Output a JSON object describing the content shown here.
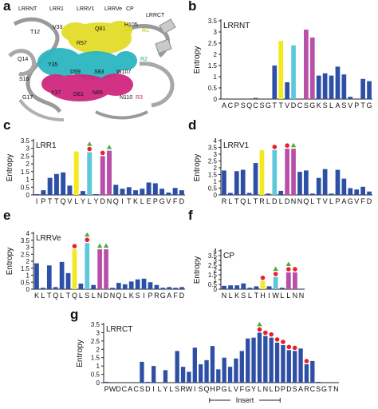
{
  "colors": {
    "bar": "#2d4fa6",
    "yellow": "#f2ea1c",
    "cyan": "#5cc8dc",
    "magenta": "#b84fa8",
    "red_dot": "#e8202a",
    "green_triangle": "#4faa3c",
    "axis": "#222222"
  },
  "panel_a": {
    "letter": "a",
    "labels": [
      "LRRNT",
      "LRR1",
      "LRRV1",
      "LRRVe",
      "CP",
      "LRRCT",
      "T12",
      "V33",
      "R57",
      "Q81",
      "H105",
      "R1",
      "Q14",
      "Y35",
      "D59",
      "S83",
      "W107",
      "R2",
      "S16",
      "D61",
      "N85",
      "G17",
      "Y37",
      "N110",
      "R3"
    ]
  },
  "chart_data": [
    {
      "panel": "b",
      "type": "bar",
      "title": "LRRNT",
      "ylabel": "Entropy",
      "ylim": [
        0,
        3.5
      ],
      "yticks": [
        0,
        0.5,
        1,
        1.5,
        2,
        2.5,
        3,
        3.5
      ],
      "categories": [
        "A",
        "C",
        "P",
        "S",
        "Q",
        "C",
        "S",
        "G",
        "T",
        "T",
        "V",
        "D",
        "C",
        "S",
        "G",
        "K",
        "S",
        "L",
        "A",
        "S",
        "V",
        "P",
        "T",
        "G"
      ],
      "values": [
        0,
        0,
        0,
        0,
        0,
        0.05,
        0,
        0,
        1.5,
        2.6,
        0.75,
        2.4,
        0,
        3.1,
        2.75,
        1.05,
        1.15,
        1.05,
        1.45,
        1.1,
        0.1,
        0,
        0.9,
        0.8
      ],
      "colors": [
        "b",
        "b",
        "b",
        "b",
        "b",
        "b",
        "b",
        "b",
        "b",
        "y",
        "b",
        "c",
        "b",
        "m",
        "m",
        "b",
        "b",
        "b",
        "b",
        "b",
        "b",
        "b",
        "b",
        "b"
      ],
      "markers": []
    },
    {
      "panel": "c",
      "type": "bar",
      "title": "LRR1",
      "ylabel": "Entropy",
      "ylim": [
        0,
        3.5
      ],
      "yticks": [
        0,
        0.5,
        1,
        1.5,
        2,
        2.5,
        3,
        3.5
      ],
      "categories": [
        "I",
        "P",
        "T",
        "T",
        "Q",
        "V",
        "L",
        "Y",
        "L",
        "Y",
        "D",
        "N",
        "Q",
        "I",
        "T",
        "K",
        "L",
        "E",
        "P",
        "G",
        "V",
        "F",
        "D"
      ],
      "values": [
        0.05,
        0.3,
        1.1,
        1.35,
        1.45,
        0.6,
        2.8,
        0.25,
        2.75,
        0.05,
        2.5,
        2.85,
        0.65,
        0.4,
        0.5,
        0.3,
        0.4,
        0.8,
        0.75,
        0.4,
        0.15,
        0.45,
        0.3
      ],
      "colors": [
        "b",
        "b",
        "b",
        "b",
        "b",
        "b",
        "y",
        "b",
        "c",
        "b",
        "m",
        "m",
        "b",
        "b",
        "b",
        "b",
        "b",
        "b",
        "b",
        "b",
        "b",
        "b",
        "b"
      ],
      "markers": [
        {
          "i": 8,
          "dot": true,
          "tri": true
        },
        {
          "i": 10,
          "dot": true,
          "tri": false
        },
        {
          "i": 11,
          "dot": false,
          "tri": true
        }
      ]
    },
    {
      "panel": "d",
      "type": "bar",
      "title": "LRRV1",
      "ylabel": "Entropy",
      "ylim": [
        0,
        4
      ],
      "yticks": [
        0,
        0.5,
        1,
        1.5,
        2,
        2.5,
        3,
        3.5,
        4
      ],
      "categories": [
        "R",
        "L",
        "T",
        "Q",
        "L",
        "T",
        "R",
        "L",
        "D",
        "L",
        "D",
        "N",
        "N",
        "Q",
        "L",
        "T",
        "V",
        "L",
        "P",
        "A",
        "G",
        "V",
        "F",
        "D"
      ],
      "values": [
        1.8,
        0.15,
        1.75,
        1.85,
        0.15,
        2.35,
        3.3,
        0.1,
        3.3,
        0.3,
        3.4,
        3.4,
        1.7,
        1.8,
        0.1,
        1.25,
        1.9,
        0.1,
        1.85,
        1.2,
        0.5,
        0.4,
        0.6,
        0.25
      ],
      "colors": [
        "b",
        "b",
        "b",
        "b",
        "b",
        "b",
        "y",
        "b",
        "c",
        "b",
        "m",
        "m",
        "b",
        "b",
        "b",
        "b",
        "b",
        "b",
        "b",
        "b",
        "b",
        "b",
        "b",
        "b"
      ],
      "markers": [
        {
          "i": 8,
          "dot": true,
          "tri": false
        },
        {
          "i": 10,
          "dot": true,
          "tri": false
        },
        {
          "i": 11,
          "dot": false,
          "tri": true
        }
      ]
    },
    {
      "panel": "e",
      "type": "bar",
      "title": "LRRVe",
      "ylabel": "Entropy",
      "ylim": [
        0,
        4
      ],
      "yticks": [
        0,
        0.5,
        1,
        1.5,
        2,
        2.5,
        3,
        3.5,
        4
      ],
      "categories": [
        "K",
        "L",
        "T",
        "Q",
        "L",
        "T",
        "Q",
        "L",
        "S",
        "L",
        "N",
        "D",
        "N",
        "Q",
        "L",
        "K",
        "S",
        "I",
        "P",
        "R",
        "G",
        "A",
        "F",
        "D"
      ],
      "values": [
        1.85,
        0.1,
        1.7,
        0.15,
        1.95,
        1.15,
        2.85,
        0.4,
        3.3,
        0.3,
        2.85,
        2.85,
        0.1,
        0.45,
        0.35,
        0.55,
        0.7,
        0.75,
        0.5,
        0.3,
        0.1,
        0.15,
        0.1,
        0.15
      ],
      "colors": [
        "b",
        "b",
        "b",
        "b",
        "b",
        "b",
        "y",
        "b",
        "c",
        "b",
        "m",
        "m",
        "b",
        "b",
        "b",
        "b",
        "b",
        "b",
        "b",
        "b",
        "b",
        "b",
        "b",
        "b"
      ],
      "markers": [
        {
          "i": 6,
          "dot": true,
          "tri": false
        },
        {
          "i": 8,
          "dot": true,
          "tri": true
        },
        {
          "i": 10,
          "dot": false,
          "tri": true
        },
        {
          "i": 11,
          "dot": false,
          "tri": true
        }
      ]
    },
    {
      "panel": "f",
      "type": "bar",
      "title": "CP",
      "ylabel": "Entropy",
      "ylim": [
        0,
        4
      ],
      "yticks": [
        0,
        0.5,
        1,
        1.5,
        2,
        2.5,
        3,
        3.5,
        4
      ],
      "categories": [
        "N",
        "L",
        "K",
        "S",
        "L",
        "T",
        "H",
        "I",
        "W",
        "L",
        "L",
        "N",
        "N"
      ],
      "values": [
        0.35,
        0.4,
        0.4,
        0.6,
        0.15,
        0.3,
        0.85,
        0.3,
        1.25,
        0.15,
        1.75,
        1.75,
        0
      ],
      "colors": [
        "b",
        "b",
        "b",
        "b",
        "b",
        "b",
        "y",
        "b",
        "c",
        "b",
        "m",
        "m",
        "b"
      ],
      "markers": [
        {
          "i": 6,
          "dot": true,
          "tri": false
        },
        {
          "i": 8,
          "dot": true,
          "tri": true
        },
        {
          "i": 10,
          "dot": true,
          "tri": true
        },
        {
          "i": 11,
          "dot": true,
          "tri": false
        }
      ]
    },
    {
      "panel": "g",
      "type": "bar",
      "title": "LRRCT",
      "ylabel": "Entropy",
      "ylim": [
        0,
        3.5
      ],
      "yticks": [
        0,
        0.5,
        1,
        1.5,
        2,
        2.5,
        3,
        3.5
      ],
      "xnote": "Insert",
      "categories": [
        "P",
        "W",
        "D",
        "C",
        "A",
        "C",
        "S",
        "D",
        "I",
        "L",
        "Y",
        "L",
        "S",
        "R",
        "W",
        "I",
        "S",
        "Q",
        "H",
        "P",
        "G",
        "L",
        "V",
        "F",
        "G",
        "Y",
        "L",
        "N",
        "L",
        "D",
        "P",
        "D",
        "S",
        "A",
        "R",
        "C",
        "S",
        "G",
        "T",
        "N"
      ],
      "values": [
        0.05,
        0,
        0,
        0,
        0,
        0,
        1.25,
        0.05,
        1.0,
        0,
        0.75,
        0,
        1.9,
        0.95,
        0.65,
        2.1,
        1.1,
        1.35,
        2.2,
        0.8,
        1.5,
        0.95,
        1.45,
        1.9,
        2.65,
        2.7,
        3.0,
        2.8,
        2.7,
        2.4,
        2.25,
        1.95,
        1.9,
        2.05,
        1.1,
        1.3,
        0.05,
        0,
        0,
        0
      ],
      "colors": [
        "b",
        "b",
        "b",
        "b",
        "b",
        "b",
        "b",
        "b",
        "b",
        "b",
        "b",
        "b",
        "b",
        "b",
        "b",
        "b",
        "b",
        "b",
        "b",
        "b",
        "b",
        "b",
        "b",
        "b",
        "b",
        "b",
        "b",
        "b",
        "b",
        "b",
        "b",
        "b",
        "b",
        "b",
        "b",
        "b",
        "b",
        "b",
        "b",
        "b"
      ],
      "markers": [
        {
          "i": 26,
          "dot": true,
          "tri": true
        },
        {
          "i": 27,
          "dot": true,
          "tri": false
        },
        {
          "i": 28,
          "dot": true,
          "tri": false
        },
        {
          "i": 29,
          "dot": true,
          "tri": false
        },
        {
          "i": 30,
          "dot": true,
          "tri": false
        },
        {
          "i": 31,
          "dot": true,
          "tri": false
        },
        {
          "i": 32,
          "dot": true,
          "tri": false
        },
        {
          "i": 34,
          "dot": true,
          "tri": false
        }
      ]
    }
  ]
}
